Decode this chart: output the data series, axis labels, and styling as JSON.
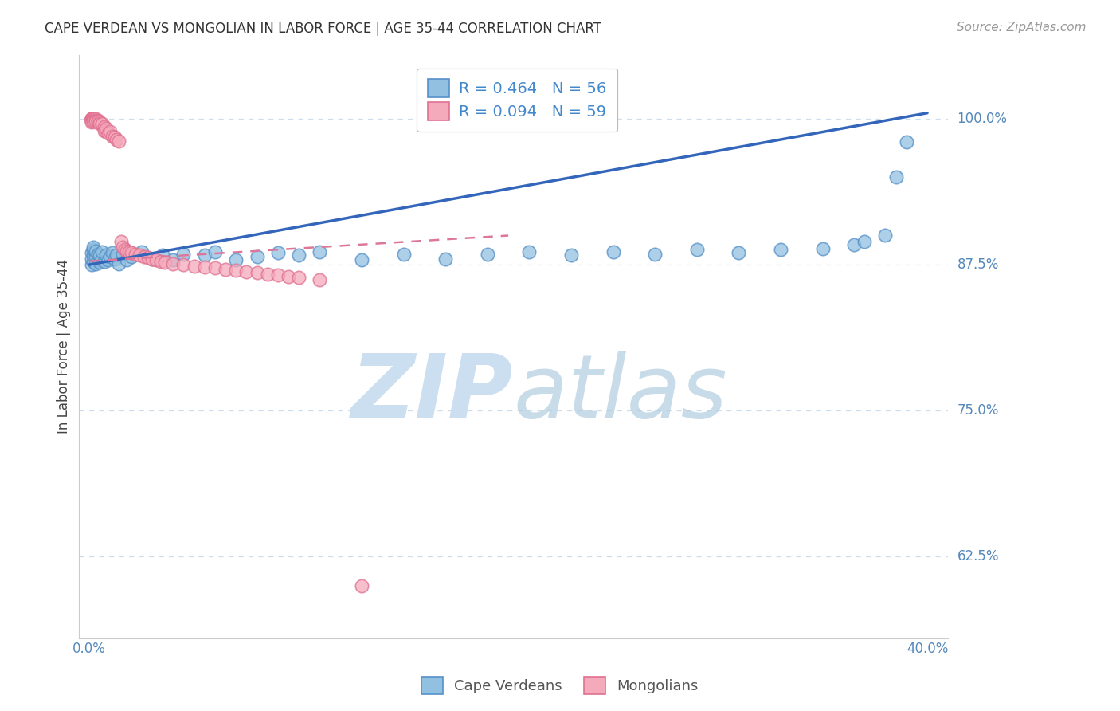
{
  "title": "CAPE VERDEAN VS MONGOLIAN IN LABOR FORCE | AGE 35-44 CORRELATION CHART",
  "source": "Source: ZipAtlas.com",
  "ylabel": "In Labor Force | Age 35-44",
  "xlim": [
    -0.005,
    0.41
  ],
  "ylim": [
    0.555,
    1.055
  ],
  "yticks": [
    0.625,
    0.75,
    0.875,
    1.0
  ],
  "ytick_labels": [
    "62.5%",
    "75.0%",
    "87.5%",
    "100.0%"
  ],
  "xtick_positions": [
    0.0,
    0.05,
    0.1,
    0.15,
    0.2,
    0.25,
    0.3,
    0.35,
    0.4
  ],
  "xtick_labels": [
    "0.0%",
    "",
    "",
    "",
    "",
    "",
    "",
    "",
    "40.0%"
  ],
  "blue_R": 0.464,
  "blue_N": 56,
  "pink_R": 0.094,
  "pink_N": 59,
  "blue_label": "Cape Verdeans",
  "pink_label": "Mongolians",
  "blue_scatter_color": "#92C0E0",
  "blue_edge_color": "#5590C8",
  "pink_scatter_color": "#F5AABB",
  "pink_edge_color": "#E07090",
  "blue_line_color": "#3366BB",
  "pink_line_color": "#DD7799",
  "axis_color": "#5588BB",
  "grid_color": "#CCDDEE",
  "title_color": "#333333",
  "source_color": "#999999",
  "legend_label_color": "#4488CC",
  "blue_x": [
    0.001,
    0.001,
    0.001,
    0.002,
    0.002,
    0.002,
    0.002,
    0.003,
    0.003,
    0.003,
    0.004,
    0.004,
    0.005,
    0.005,
    0.006,
    0.006,
    0.007,
    0.008,
    0.009,
    0.01,
    0.011,
    0.012,
    0.013,
    0.014,
    0.016,
    0.018,
    0.02,
    0.025,
    0.03,
    0.035,
    0.04,
    0.045,
    0.055,
    0.06,
    0.07,
    0.08,
    0.09,
    0.1,
    0.11,
    0.13,
    0.15,
    0.17,
    0.19,
    0.21,
    0.23,
    0.25,
    0.27,
    0.29,
    0.31,
    0.33,
    0.35,
    0.365,
    0.37,
    0.38,
    0.385,
    0.39
  ],
  "blue_y": [
    0.875,
    0.88,
    0.885,
    0.878,
    0.883,
    0.888,
    0.89,
    0.876,
    0.882,
    0.887,
    0.879,
    0.884,
    0.877,
    0.883,
    0.88,
    0.886,
    0.878,
    0.883,
    0.879,
    0.882,
    0.885,
    0.88,
    0.883,
    0.876,
    0.884,
    0.879,
    0.882,
    0.886,
    0.88,
    0.883,
    0.879,
    0.884,
    0.883,
    0.886,
    0.879,
    0.882,
    0.885,
    0.883,
    0.886,
    0.879,
    0.884,
    0.88,
    0.884,
    0.886,
    0.883,
    0.886,
    0.884,
    0.888,
    0.885,
    0.888,
    0.889,
    0.892,
    0.895,
    0.9,
    0.95,
    0.98
  ],
  "pink_x": [
    0.001,
    0.001,
    0.001,
    0.001,
    0.001,
    0.001,
    0.001,
    0.002,
    0.002,
    0.002,
    0.002,
    0.003,
    0.003,
    0.003,
    0.004,
    0.004,
    0.005,
    0.005,
    0.006,
    0.006,
    0.007,
    0.007,
    0.008,
    0.008,
    0.009,
    0.01,
    0.011,
    0.012,
    0.013,
    0.014,
    0.015,
    0.016,
    0.017,
    0.018,
    0.019,
    0.02,
    0.022,
    0.024,
    0.026,
    0.028,
    0.03,
    0.032,
    0.034,
    0.036,
    0.04,
    0.045,
    0.05,
    0.055,
    0.06,
    0.065,
    0.07,
    0.075,
    0.08,
    0.085,
    0.09,
    0.095,
    0.1,
    0.11,
    0.13
  ],
  "pink_y": [
    1.0,
    1.0,
    1.0,
    1.0,
    0.999,
    0.998,
    0.997,
    1.0,
    1.0,
    0.999,
    0.998,
    1.0,
    0.999,
    0.998,
    0.999,
    0.998,
    0.997,
    0.996,
    0.995,
    0.996,
    0.993,
    0.99,
    0.989,
    0.992,
    0.988,
    0.989,
    0.985,
    0.984,
    0.982,
    0.981,
    0.895,
    0.89,
    0.888,
    0.887,
    0.886,
    0.885,
    0.884,
    0.883,
    0.882,
    0.881,
    0.88,
    0.879,
    0.878,
    0.877,
    0.876,
    0.875,
    0.874,
    0.873,
    0.872,
    0.871,
    0.87,
    0.869,
    0.868,
    0.867,
    0.866,
    0.865,
    0.864,
    0.862,
    0.6
  ]
}
